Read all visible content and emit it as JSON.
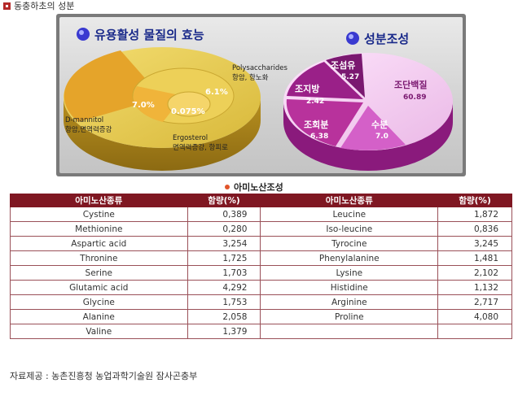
{
  "header": {
    "title": "동충하초의 성분"
  },
  "left_chart": {
    "title": "유용활성 물질의 효능",
    "labels": [
      {
        "value_text": "6.1%",
        "name": "Polysaccharides",
        "effect": "항암, 항노화"
      },
      {
        "value_text": "7.0%",
        "name": "D-mannitol",
        "effect": "항암,면역력증강"
      },
      {
        "value_text": "0.075%",
        "name": "Ergosterol",
        "effect": "면역력증강, 항피로"
      }
    ]
  },
  "right_chart": {
    "title": "성분조성",
    "slices": [
      {
        "name": "조단백질",
        "value_text": "60.89"
      },
      {
        "name": "수분",
        "value_text": "7.0"
      },
      {
        "name": "조회분",
        "value_text": "6.38"
      },
      {
        "name": "조지방",
        "value_text": "2.42"
      },
      {
        "name": "조섬유",
        "value_text": "5.27"
      }
    ]
  },
  "chart_data": [
    {
      "type": "pie",
      "title": "유용활성 물질의 효능",
      "categories": [
        "Polysaccharides",
        "D-mannitol",
        "Ergosterol"
      ],
      "values": [
        6.1,
        7.0,
        0.075
      ],
      "unit": "%",
      "colors": [
        "#e0c548",
        "#e5a42a",
        "#f0c050"
      ]
    },
    {
      "type": "pie",
      "title": "성분조성",
      "categories": [
        "조단백질",
        "수분",
        "조회분",
        "조지방",
        "조섬유"
      ],
      "values": [
        60.89,
        7.0,
        6.38,
        2.42,
        5.27
      ],
      "colors": [
        "#f2c8f0",
        "#d460c8",
        "#b8329c",
        "#9a2088",
        "#7a1870"
      ]
    }
  ],
  "amino": {
    "title": "아미노산조성",
    "headers": [
      "아미노산종류",
      "함량(%)",
      "아미노산종류",
      "함량(%)"
    ],
    "rows": [
      [
        "Cystine",
        "0,389",
        "Leucine",
        "1,872"
      ],
      [
        "Methionine",
        "0,280",
        "Iso-leucine",
        "0,836"
      ],
      [
        "Aspartic acid",
        "3,254",
        "Tyrocine",
        "3,245"
      ],
      [
        "Thronine",
        "1,725",
        "Phenylalanine",
        "1,481"
      ],
      [
        "Serine",
        "1,703",
        "Lysine",
        "2,102"
      ],
      [
        "Glutamic acid",
        "4,292",
        "Histidine",
        "1,132"
      ],
      [
        "Glycine",
        "1,753",
        "Arginine",
        "2,717"
      ],
      [
        "Alanine",
        "2,058",
        "Proline",
        "4,080"
      ],
      [
        "Valine",
        "1,379",
        "",
        ""
      ]
    ]
  },
  "footer": {
    "source": "자료제공 : 농촌진흥청 농업과학기술원 잠사곤충부"
  }
}
